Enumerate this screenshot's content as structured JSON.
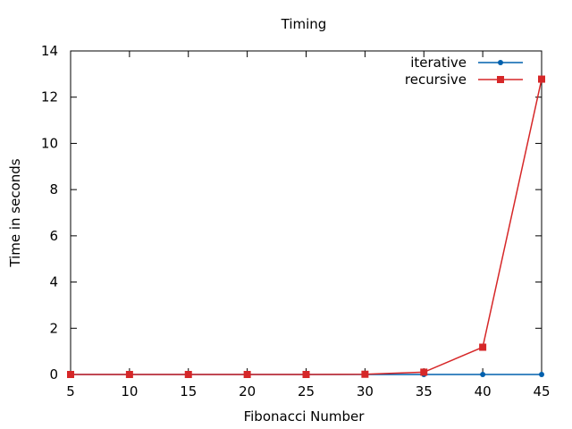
{
  "chart_data": {
    "type": "line",
    "title": "Timing",
    "xlabel": "Fibonacci Number",
    "ylabel": "Time in seconds",
    "xlim": [
      5,
      45
    ],
    "ylim": [
      0,
      14
    ],
    "xticks": [
      5,
      10,
      15,
      20,
      25,
      30,
      35,
      40,
      45
    ],
    "yticks": [
      0,
      2,
      4,
      6,
      8,
      10,
      12,
      14
    ],
    "grid": false,
    "legend": "top-right",
    "x": [
      5,
      10,
      15,
      20,
      25,
      30,
      35,
      40,
      45
    ],
    "series": [
      {
        "name": "iterative",
        "color": "#0060ad",
        "marker": "circle",
        "values": [
          0,
          0,
          0,
          0,
          0,
          0,
          0,
          0,
          0
        ]
      },
      {
        "name": "recursive",
        "color": "#d62728",
        "marker": "square",
        "values": [
          0,
          0,
          0,
          0,
          0,
          0.01,
          0.1,
          1.18,
          12.78
        ]
      }
    ]
  }
}
